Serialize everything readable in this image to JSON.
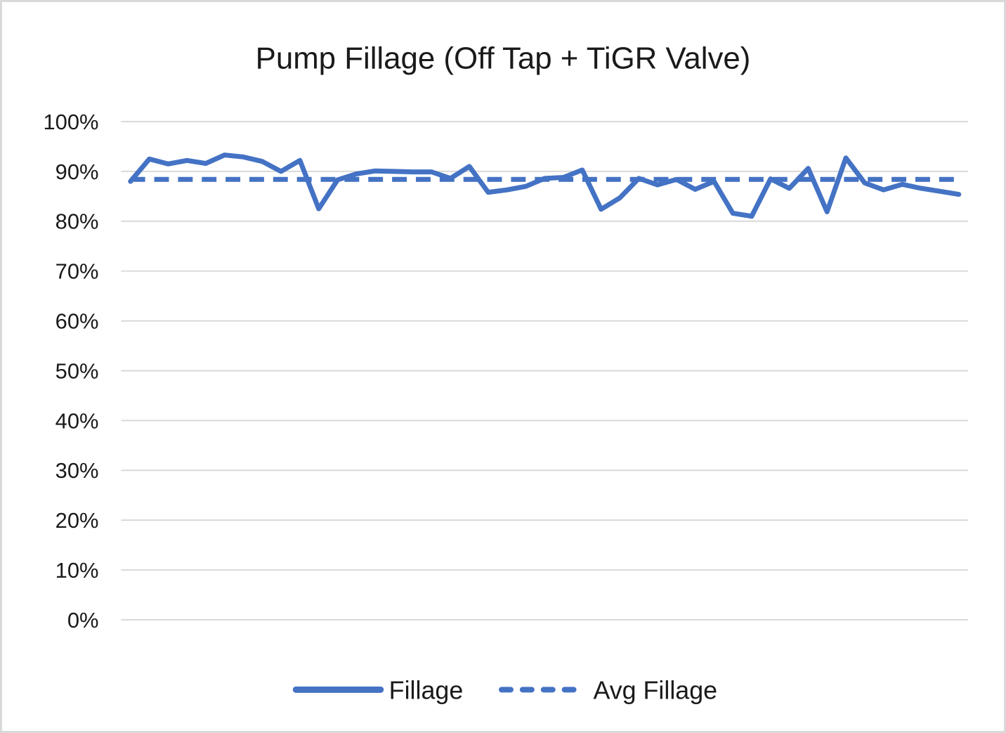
{
  "chart_data": {
    "type": "line",
    "title": "Pump Fillage (Off Tap + TiGR Valve)",
    "xlabel": "",
    "ylabel": "",
    "ylim": [
      0,
      100
    ],
    "y_ticks": [
      "0%",
      "10%",
      "20%",
      "30%",
      "40%",
      "50%",
      "60%",
      "70%",
      "80%",
      "90%",
      "100%"
    ],
    "grid": "horizontal",
    "legend_position": "bottom",
    "colors": {
      "series_blue": "#4472C4",
      "gridline": "#D9D9D9",
      "text": "#1A1A1A",
      "frame_border": "#D9D9D9"
    },
    "series": [
      {
        "name": "Fillage",
        "style": "solid",
        "values": [
          88,
          92.5,
          91.5,
          92.2,
          91.6,
          93.3,
          92.9,
          92,
          90,
          92.2,
          82.5,
          88.3,
          89.5,
          90.1,
          90,
          89.9,
          89.9,
          88.6,
          91,
          85.8,
          86.3,
          87,
          88.6,
          88.8,
          90.3,
          82.4,
          84.7,
          88.6,
          87.3,
          88.4,
          86.4,
          88,
          81.6,
          81,
          88.5,
          86.6,
          90.6,
          81.9,
          92.7,
          87.7,
          86.3,
          87.4,
          86.6,
          86,
          85.4
        ]
      },
      {
        "name": "Avg Fillage",
        "style": "dashed",
        "value": 88.4
      }
    ]
  }
}
